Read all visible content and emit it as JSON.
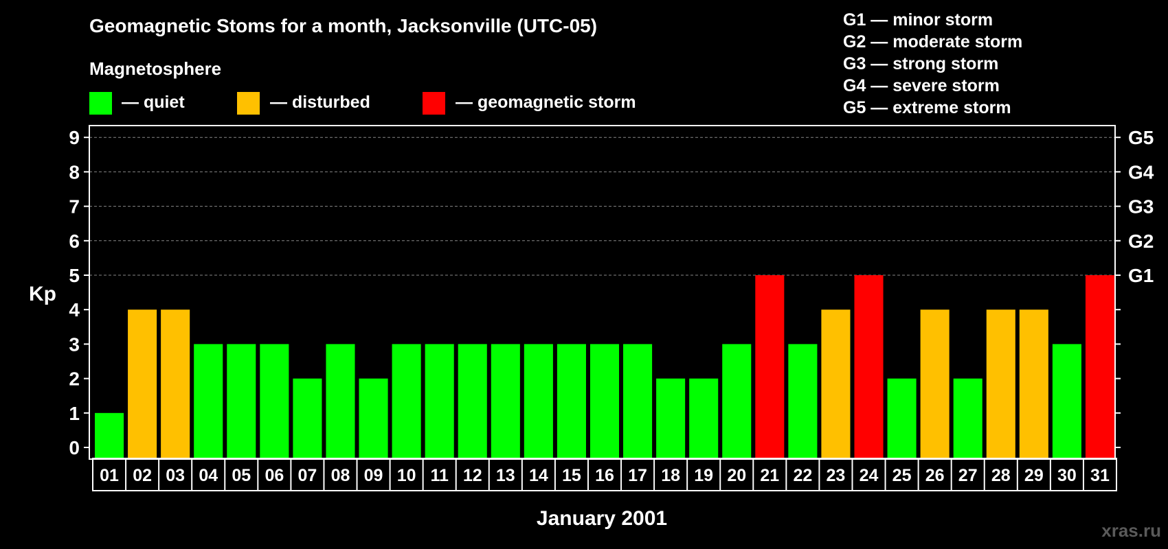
{
  "title": "Geomagnetic Stoms for a month, Jacksonville (UTC-05)",
  "legend": {
    "heading": "Magnetosphere",
    "items": [
      {
        "label": "— quiet",
        "color": "#00ff00"
      },
      {
        "label": "— disturbed",
        "color": "#ffc000"
      },
      {
        "label": "— geomagnetic storm",
        "color": "#ff0000"
      }
    ]
  },
  "storm_scale": [
    "G1 — minor storm",
    "G2 — moderate storm",
    "G3 — strong storm",
    "G4 — severe storm",
    "G5 — extreme storm"
  ],
  "watermark": "xras.ru",
  "chart_data": {
    "type": "bar",
    "ylabel": "Kp",
    "xlabel": "January 2001",
    "ylim": [
      0,
      9
    ],
    "yticks": [
      "0",
      "1",
      "2",
      "3",
      "4",
      "5",
      "6",
      "7",
      "8",
      "9"
    ],
    "right_ticks": [
      {
        "value": 5,
        "label": "G1"
      },
      {
        "value": 6,
        "label": "G2"
      },
      {
        "value": 7,
        "label": "G3"
      },
      {
        "value": 8,
        "label": "G4"
      },
      {
        "value": 9,
        "label": "G5"
      }
    ],
    "grid_dashed_at": [
      5,
      6,
      7,
      8,
      9
    ],
    "categories": [
      "01",
      "02",
      "03",
      "04",
      "05",
      "06",
      "07",
      "08",
      "09",
      "10",
      "11",
      "12",
      "13",
      "14",
      "15",
      "16",
      "17",
      "18",
      "19",
      "20",
      "21",
      "22",
      "23",
      "24",
      "25",
      "26",
      "27",
      "28",
      "29",
      "30",
      "31"
    ],
    "values": [
      1,
      4,
      4,
      3,
      3,
      3,
      2,
      3,
      2,
      3,
      3,
      3,
      3,
      3,
      3,
      3,
      3,
      2,
      2,
      3,
      5,
      3,
      4,
      5,
      2,
      4,
      2,
      4,
      4,
      3,
      5
    ],
    "colors": {
      "quiet": "#00ff00",
      "disturbed": "#ffc000",
      "storm": "#ff0000"
    }
  }
}
